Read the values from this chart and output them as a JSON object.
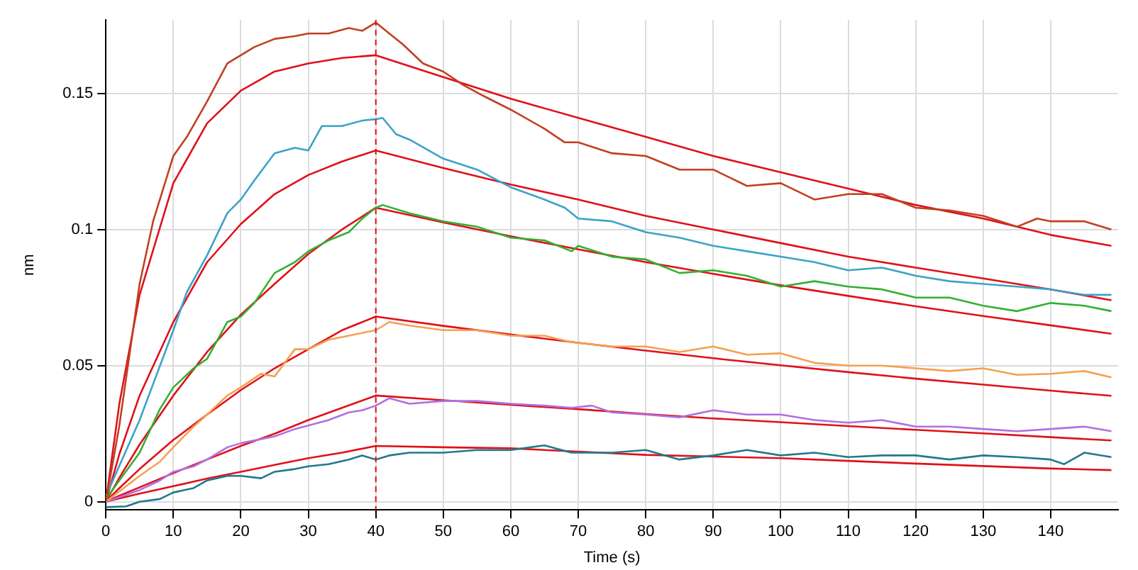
{
  "chart_data": {
    "type": "line",
    "xlabel": "Time (s)",
    "ylabel": "nm",
    "xlim": [
      0,
      150
    ],
    "ylim": [
      -0.003,
      0.177
    ],
    "xticks": [
      0,
      10,
      20,
      30,
      40,
      50,
      60,
      70,
      80,
      90,
      100,
      110,
      120,
      130,
      140
    ],
    "yticks": [
      0,
      0.05,
      0.1,
      0.15
    ],
    "grid": true,
    "legend": false,
    "marker": "none",
    "line_style": "solid",
    "ref_lines": [
      {
        "axis": "x",
        "value": 40,
        "color": "#e0101a",
        "line_style": "dashed"
      }
    ],
    "series": [
      {
        "color": "#c04020",
        "x": [
          0,
          2,
          5,
          7,
          10,
          12,
          15,
          18,
          20,
          22,
          25,
          28,
          30,
          33,
          36,
          38,
          40,
          42,
          44,
          47,
          50,
          53,
          56,
          60,
          65,
          68,
          70,
          75,
          80,
          85,
          90,
          95,
          100,
          105,
          110,
          115,
          120,
          125,
          130,
          135,
          138,
          140,
          145,
          149
        ],
        "values": [
          0,
          0.028,
          0.08,
          0.103,
          0.127,
          0.134,
          0.147,
          0.161,
          0.164,
          0.167,
          0.17,
          0.171,
          0.172,
          0.172,
          0.174,
          0.173,
          0.176,
          0.172,
          0.168,
          0.161,
          0.158,
          0.153,
          0.149,
          0.144,
          0.137,
          0.132,
          0.132,
          0.128,
          0.127,
          0.122,
          0.122,
          0.116,
          0.117,
          0.111,
          0.113,
          0.113,
          0.108,
          0.107,
          0.105,
          0.101,
          0.104,
          0.103,
          0.103,
          0.1
        ]
      },
      {
        "color": "#3ba3c8",
        "x": [
          0,
          5,
          10,
          12,
          15,
          18,
          20,
          22,
          25,
          28,
          30,
          32,
          35,
          38,
          40,
          41,
          43,
          45,
          50,
          55,
          60,
          65,
          68,
          70,
          75,
          80,
          85,
          90,
          95,
          100,
          105,
          110,
          115,
          120,
          125,
          130,
          135,
          140,
          145,
          149
        ],
        "values": [
          0.002,
          0.03,
          0.063,
          0.077,
          0.0905,
          0.106,
          0.111,
          0.118,
          0.128,
          0.13,
          0.129,
          0.138,
          0.138,
          0.14,
          0.1405,
          0.141,
          0.135,
          0.133,
          0.126,
          0.122,
          0.1155,
          0.111,
          0.108,
          0.104,
          0.103,
          0.099,
          0.097,
          0.094,
          0.092,
          0.09,
          0.088,
          0.085,
          0.086,
          0.083,
          0.081,
          0.08,
          0.079,
          0.078,
          0.076,
          0.076
        ]
      },
      {
        "color": "#33b033",
        "x": [
          0,
          5,
          8,
          10,
          13,
          15,
          18,
          20,
          22,
          25,
          28,
          30,
          33,
          36,
          38,
          40,
          41,
          45,
          50,
          55,
          60,
          65,
          69,
          70,
          75,
          80,
          85,
          90,
          95,
          100,
          105,
          110,
          115,
          120,
          125,
          130,
          135,
          140,
          145,
          149
        ],
        "values": [
          0.001,
          0.018,
          0.034,
          0.042,
          0.049,
          0.0525,
          0.066,
          0.068,
          0.073,
          0.084,
          0.088,
          0.092,
          0.096,
          0.099,
          0.104,
          0.108,
          0.109,
          0.106,
          0.103,
          0.101,
          0.097,
          0.096,
          0.092,
          0.094,
          0.09,
          0.089,
          0.084,
          0.085,
          0.083,
          0.079,
          0.081,
          0.079,
          0.078,
          0.075,
          0.075,
          0.072,
          0.07,
          0.073,
          0.072,
          0.07
        ]
      },
      {
        "color": "#f5a050",
        "x": [
          0,
          5,
          8,
          10,
          13,
          15,
          18,
          20,
          23,
          25,
          28,
          30,
          33,
          36,
          38,
          40,
          42,
          45,
          50,
          55,
          60,
          65,
          69,
          75,
          80,
          85,
          90,
          95,
          100,
          105,
          110,
          115,
          120,
          125,
          130,
          135,
          140,
          145,
          149
        ],
        "values": [
          0,
          0.0095,
          0.0147,
          0.02,
          0.0276,
          0.032,
          0.039,
          0.042,
          0.047,
          0.046,
          0.056,
          0.056,
          0.0595,
          0.061,
          0.062,
          0.063,
          0.066,
          0.0647,
          0.063,
          0.063,
          0.061,
          0.061,
          0.0586,
          0.057,
          0.057,
          0.055,
          0.057,
          0.054,
          0.0545,
          0.051,
          0.05,
          0.05,
          0.049,
          0.048,
          0.049,
          0.0466,
          0.047,
          0.048,
          0.0457
        ]
      },
      {
        "color": "#b070e0",
        "x": [
          0,
          5,
          8,
          10,
          13,
          15,
          18,
          20,
          23,
          25,
          28,
          30,
          33,
          36,
          38,
          40,
          42,
          45,
          50,
          55,
          60,
          65,
          69,
          72,
          75,
          80,
          85,
          90,
          95,
          100,
          105,
          110,
          115,
          120,
          125,
          130,
          135,
          140,
          145,
          149
        ],
        "values": [
          0,
          0.0043,
          0.0078,
          0.011,
          0.013,
          0.0155,
          0.02,
          0.0215,
          0.023,
          0.024,
          0.0267,
          0.028,
          0.03,
          0.0328,
          0.0336,
          0.0353,
          0.038,
          0.036,
          0.037,
          0.037,
          0.036,
          0.0353,
          0.0345,
          0.0353,
          0.0328,
          0.032,
          0.031,
          0.0336,
          0.032,
          0.032,
          0.03,
          0.029,
          0.03,
          0.0276,
          0.0276,
          0.0267,
          0.0259,
          0.0267,
          0.0276,
          0.0259
        ]
      },
      {
        "color": "#207a8a",
        "x": [
          0,
          3,
          5,
          8,
          10,
          13,
          15,
          18,
          20,
          23,
          25,
          28,
          30,
          33,
          36,
          38,
          40,
          42,
          45,
          50,
          55,
          60,
          65,
          69,
          75,
          80,
          85,
          90,
          95,
          100,
          105,
          110,
          115,
          120,
          125,
          130,
          135,
          140,
          142,
          145,
          149
        ],
        "values": [
          -0.002,
          -0.0017,
          0,
          0.001,
          0.0034,
          0.005,
          0.0078,
          0.0095,
          0.0095,
          0.0086,
          0.011,
          0.012,
          0.013,
          0.0138,
          0.0155,
          0.017,
          0.0155,
          0.017,
          0.018,
          0.018,
          0.019,
          0.019,
          0.0207,
          0.018,
          0.018,
          0.019,
          0.0155,
          0.017,
          0.019,
          0.017,
          0.018,
          0.0164,
          0.017,
          0.017,
          0.0155,
          0.017,
          0.0164,
          0.0155,
          0.0138,
          0.018,
          0.0164
        ]
      },
      {
        "color": "#e0101a",
        "x": [
          0,
          2,
          5,
          10,
          15,
          20,
          25,
          30,
          35,
          40,
          50,
          60,
          70,
          80,
          90,
          100,
          110,
          120,
          130,
          140,
          149
        ],
        "values": [
          0,
          0.036,
          0.076,
          0.117,
          0.139,
          0.151,
          0.158,
          0.161,
          0.163,
          0.164,
          0.156,
          0.148,
          0.141,
          0.134,
          0.127,
          0.121,
          0.115,
          0.109,
          0.104,
          0.098,
          0.094
        ]
      },
      {
        "color": "#e0101a",
        "x": [
          0,
          2,
          5,
          10,
          15,
          20,
          25,
          30,
          35,
          40,
          50,
          60,
          70,
          80,
          90,
          100,
          110,
          120,
          130,
          140,
          149
        ],
        "values": [
          0,
          0.0175,
          0.039,
          0.066,
          0.088,
          0.102,
          0.113,
          0.12,
          0.125,
          0.129,
          0.1226,
          0.1165,
          0.111,
          0.105,
          0.1,
          0.095,
          0.09,
          0.086,
          0.082,
          0.078,
          0.074
        ]
      },
      {
        "color": "#e0101a",
        "x": [
          0,
          2,
          5,
          10,
          15,
          20,
          25,
          30,
          35,
          40,
          50,
          60,
          70,
          80,
          90,
          100,
          110,
          120,
          130,
          140,
          149
        ],
        "values": [
          0,
          0.0088,
          0.021,
          0.039,
          0.055,
          0.0687,
          0.08,
          0.091,
          0.1,
          0.108,
          0.1026,
          0.0975,
          0.0927,
          0.088,
          0.0837,
          0.0795,
          0.0756,
          0.0718,
          0.0682,
          0.0648,
          0.0617
        ]
      },
      {
        "color": "#e0101a",
        "x": [
          0,
          2,
          5,
          10,
          15,
          20,
          25,
          30,
          35,
          40,
          50,
          60,
          70,
          80,
          90,
          100,
          110,
          120,
          130,
          140,
          149
        ],
        "values": [
          0,
          0.005,
          0.012,
          0.0227,
          0.032,
          0.041,
          0.049,
          0.056,
          0.063,
          0.068,
          0.0646,
          0.0614,
          0.0584,
          0.0555,
          0.0527,
          0.0501,
          0.0476,
          0.0452,
          0.043,
          0.0408,
          0.0389
        ]
      },
      {
        "color": "#e0101a",
        "x": [
          0,
          2,
          5,
          10,
          15,
          20,
          25,
          30,
          35,
          40,
          50,
          60,
          70,
          80,
          90,
          100,
          110,
          120,
          130,
          140,
          149
        ],
        "values": [
          0,
          0.0022,
          0.0053,
          0.0105,
          0.0155,
          0.0205,
          0.025,
          0.03,
          0.0345,
          0.039,
          0.0373,
          0.0356,
          0.034,
          0.0322,
          0.0306,
          0.0292,
          0.0278,
          0.0264,
          0.0251,
          0.0237,
          0.0225
        ]
      },
      {
        "color": "#e0101a",
        "x": [
          0,
          2,
          5,
          10,
          15,
          20,
          25,
          30,
          35,
          40,
          50,
          60,
          70,
          80,
          90,
          100,
          110,
          120,
          130,
          140,
          149
        ],
        "values": [
          0,
          0.0012,
          0.003,
          0.0057,
          0.0085,
          0.011,
          0.0135,
          0.016,
          0.018,
          0.0205,
          0.02,
          0.0196,
          0.0184,
          0.0172,
          0.0166,
          0.016,
          0.015,
          0.014,
          0.0131,
          0.0122,
          0.0116
        ]
      }
    ]
  }
}
